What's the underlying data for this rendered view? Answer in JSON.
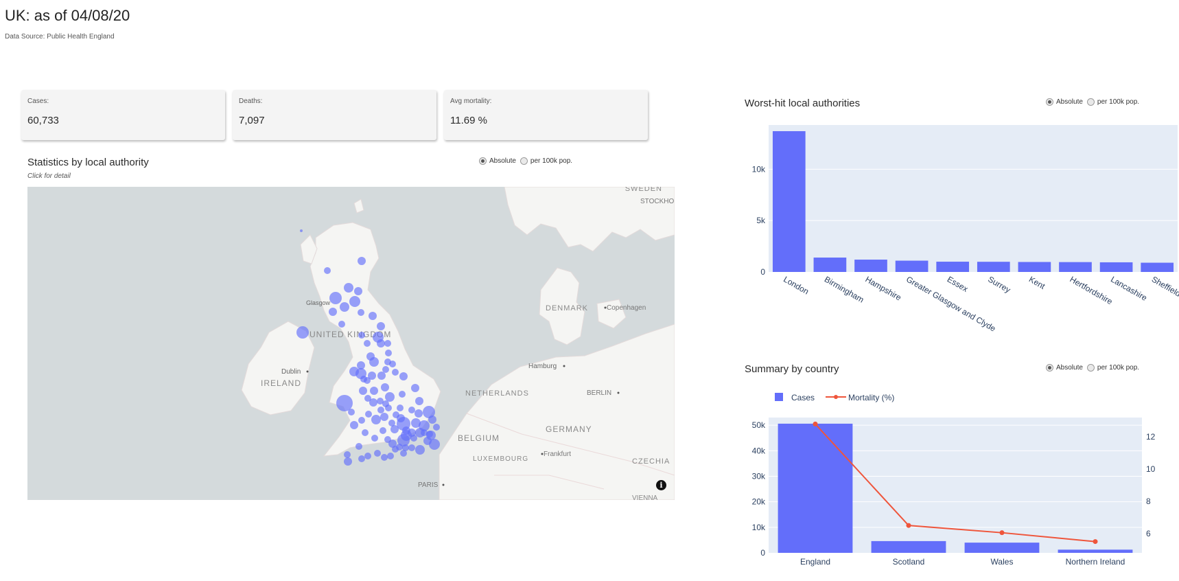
{
  "header": {
    "title": "UK: as of 04/08/20",
    "source": "Data Source: Public Health England"
  },
  "stats": {
    "cases_label": "Cases:",
    "cases_value": "60,733",
    "deaths_label": "Deaths:",
    "deaths_value": "7,097",
    "mortality_label": "Avg mortality:",
    "mortality_value": "11.69 %"
  },
  "map_section": {
    "title": "Statistics by local authority",
    "subtitle": "Click for detail",
    "radio_absolute": "Absolute",
    "radio_per100k": "per 100k pop.",
    "selected": "Absolute",
    "labels": {
      "sweden": "SWEDEN",
      "stockholm": "STOCKHO",
      "glasgow": "Glasgow",
      "uk": "UNITED KINGDOM",
      "denmark": "DENMARK",
      "copenhagen": "Copenhagen",
      "dublin": "Dublin",
      "ireland": "IRELAND",
      "hamburg": "Hamburg",
      "netherlands": "NETHERLANDS",
      "berlin": "BERLIN",
      "germany": "GERMANY",
      "belgium": "BELGIUM",
      "luxembourg": "LUXEMBOURG",
      "frankfurt": "Frankfurt",
      "czechia": "CZECHIA",
      "paris": "PARIS",
      "vienna": "VIENNA"
    },
    "info_icon": "info-icon",
    "colors": {
      "bubble": "#636efa",
      "water": "#d4dadc",
      "land": "#f5f5f3"
    }
  },
  "worst_section": {
    "title": "Worst-hit local authorities",
    "radio_absolute": "Absolute",
    "radio_per100k": "per 100k pop.",
    "selected": "Absolute"
  },
  "country_section": {
    "title": "Summary by country",
    "radio_absolute": "Absolute",
    "radio_per100k": "per 100k pop.",
    "selected": "Absolute"
  },
  "chart_data": [
    {
      "type": "bar",
      "categories": [
        "London",
        "Birmingham",
        "Hampshire",
        "Greater Glasgow and Clyde",
        "Essex",
        "Surrey",
        "Kent",
        "Hertfordshire",
        "Lancashire",
        "Sheffield"
      ],
      "values": [
        13700,
        1400,
        1200,
        1100,
        1000,
        990,
        970,
        960,
        940,
        900
      ],
      "title": "",
      "xlabel": "",
      "ylabel": "",
      "ylim": [
        0,
        14300
      ],
      "yticks": [
        0,
        5000,
        10000
      ],
      "ytick_labels": [
        "0",
        "5k",
        "10k"
      ],
      "grid": true,
      "color": "#636efa",
      "plot_bg": "#e5ecf6"
    },
    {
      "type": "bar",
      "categories": [
        "England",
        "Scotland",
        "Wales",
        "Northern Ireland"
      ],
      "series": [
        {
          "name": "Cases",
          "type": "bar",
          "values": [
            50600,
            4600,
            4000,
            1250
          ],
          "color": "#636efa"
        },
        {
          "name": "Mortality (%)",
          "type": "line",
          "axis": "right",
          "values": [
            12.8,
            6.5,
            6.05,
            5.5
          ],
          "color": "#ef553b"
        }
      ],
      "ylim": [
        0,
        53000
      ],
      "yticks": [
        0,
        10000,
        20000,
        30000,
        40000,
        50000
      ],
      "ytick_labels": [
        "0",
        "10k",
        "20k",
        "30k",
        "40k",
        "50k"
      ],
      "y2lim": [
        4.8,
        13.2
      ],
      "y2ticks": [
        6,
        8,
        10,
        12
      ],
      "y2tick_labels": [
        "6",
        "8",
        "10",
        "12"
      ],
      "legend": "top-left",
      "grid": true,
      "plot_bg": "#e5ecf6"
    }
  ]
}
